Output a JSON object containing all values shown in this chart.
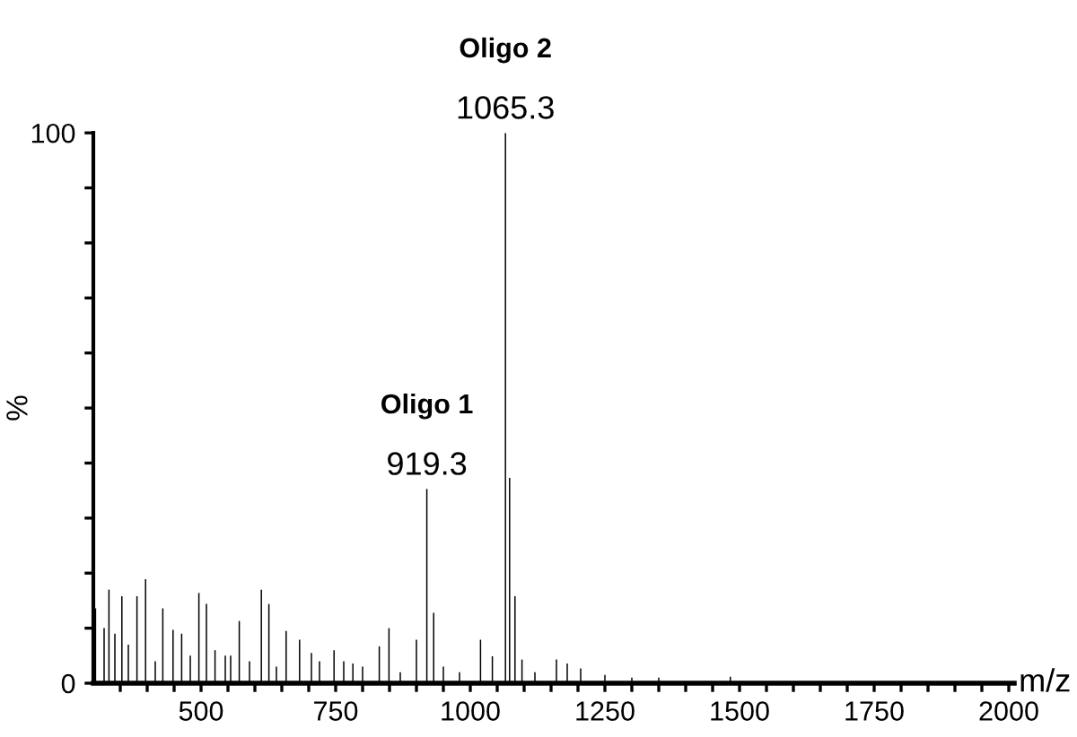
{
  "chart_data": {
    "type": "bar",
    "xlabel": "m/z",
    "ylabel": "%",
    "x": [
      304,
      320,
      329,
      340,
      353,
      365,
      381,
      397,
      415,
      429,
      448,
      464,
      480,
      496,
      510,
      526,
      545,
      555,
      571,
      590,
      612,
      626,
      640,
      658,
      683,
      705,
      720,
      747,
      765,
      782,
      800,
      831,
      849,
      870,
      900,
      919.3,
      932,
      950,
      980,
      1019,
      1041,
      1065.3,
      1073,
      1083,
      1096,
      1120,
      1160,
      1180,
      1205,
      1250,
      1300,
      1350,
      1483
    ],
    "values": [
      13.6,
      10,
      17,
      9,
      15.8,
      7,
      15.8,
      18.9,
      4,
      13.6,
      9.7,
      9,
      5,
      16.4,
      14.4,
      6,
      5,
      5,
      11.3,
      4,
      17,
      14.4,
      3,
      9.5,
      7.9,
      5.5,
      4,
      6,
      4,
      3.6,
      3,
      6.7,
      10,
      2,
      7.9,
      35.3,
      12.8,
      3,
      2,
      7.9,
      4.9,
      100,
      37.3,
      15.8,
      4.3,
      2,
      4.3,
      3.6,
      2.7,
      1.5,
      1,
      1,
      1.2
    ],
    "color": "#000000",
    "xlim": [
      300,
      2010
    ],
    "ylim": [
      0,
      100
    ],
    "xticks": [
      {
        "value": 350,
        "label": null
      },
      {
        "value": 400,
        "label": null
      },
      {
        "value": 450,
        "label": null
      },
      500,
      {
        "value": 550,
        "label": null
      },
      {
        "value": 600,
        "label": null
      },
      {
        "value": 650,
        "label": null
      },
      {
        "value": 700,
        "label": null
      },
      750,
      {
        "value": 800,
        "label": null
      },
      {
        "value": 850,
        "label": null
      },
      {
        "value": 900,
        "label": null
      },
      {
        "value": 950,
        "label": null
      },
      1000,
      {
        "value": 1050,
        "label": null
      },
      {
        "value": 1100,
        "label": null
      },
      {
        "value": 1150,
        "label": null
      },
      {
        "value": 1200,
        "label": null
      },
      1250,
      {
        "value": 1300,
        "label": null
      },
      {
        "value": 1350,
        "label": null
      },
      {
        "value": 1400,
        "label": null
      },
      {
        "value": 1450,
        "label": null
      },
      1500,
      {
        "value": 1550,
        "label": null
      },
      {
        "value": 1600,
        "label": null
      },
      {
        "value": 1650,
        "label": null
      },
      {
        "value": 1700,
        "label": null
      },
      1750,
      {
        "value": 1800,
        "label": null
      },
      {
        "value": 1850,
        "label": null
      },
      {
        "value": 1900,
        "label": null
      },
      {
        "value": 1950,
        "label": null
      },
      2000
    ],
    "yticks": [
      0,
      {
        "value": 10,
        "label": null
      },
      {
        "value": 20,
        "label": null
      },
      {
        "value": 30,
        "label": null
      },
      {
        "value": 40,
        "label": null
      },
      {
        "value": 50,
        "label": null
      },
      {
        "value": 60,
        "label": null
      },
      {
        "value": 70,
        "label": null
      },
      {
        "value": 80,
        "label": null
      },
      {
        "value": 90,
        "label": null
      },
      100
    ],
    "annotations": [
      "Oligo 1",
      {
        "text": "919.3",
        "x": 919.3,
        "y": 35.3
      },
      "Oligo 2",
      {
        "text": "1065.3",
        "x": 1065.3,
        "y": 100
      }
    ]
  }
}
